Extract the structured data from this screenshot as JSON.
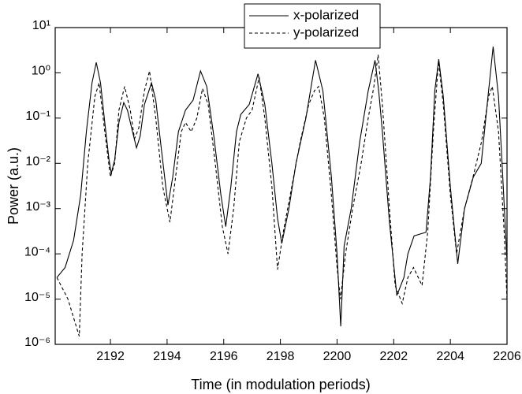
{
  "chart_data": {
    "type": "line",
    "xlabel": "Time (in modulation periods)",
    "ylabel": "Power (a.u.)",
    "xlim": [
      2190.05,
      2206
    ],
    "xticks": [
      2192,
      2194,
      2196,
      2198,
      2200,
      2202,
      2204,
      2206
    ],
    "ylim": [
      1e-06,
      10
    ],
    "yscale": "log",
    "yticks": [
      {
        "value": 1e-06,
        "label": "10⁻⁶"
      },
      {
        "value": 1e-05,
        "label": "10⁻⁵"
      },
      {
        "value": 0.0001,
        "label": "10⁻⁴"
      },
      {
        "value": 0.001,
        "label": "10⁻³"
      },
      {
        "value": 0.01,
        "label": "10⁻²"
      },
      {
        "value": 0.1,
        "label": "10⁻¹"
      },
      {
        "value": 1,
        "label": "10⁰"
      },
      {
        "value": 10,
        "label": "10¹"
      }
    ],
    "legend": "upper center",
    "series": [
      {
        "name": "x-polarized",
        "color": "#000000",
        "linestyle": "solid",
        "x": [
          2190.11,
          2190.4,
          2190.7,
          2190.95,
          2191.15,
          2191.35,
          2191.5,
          2191.65,
          2191.8,
          2191.95,
          2192.03,
          2192.15,
          2192.3,
          2192.47,
          2192.6,
          2192.75,
          2192.92,
          2193.05,
          2193.2,
          2193.45,
          2193.6,
          2193.8,
          2194.03,
          2194.2,
          2194.4,
          2194.65,
          2194.92,
          2195.18,
          2195.4,
          2195.65,
          2195.9,
          2196.07,
          2196.25,
          2196.45,
          2196.6,
          2196.9,
          2197.21,
          2197.45,
          2197.7,
          2197.9,
          2198.05,
          2198.3,
          2198.55,
          2198.9,
          2199.24,
          2199.5,
          2199.8,
          2200.0,
          2200.13,
          2200.25,
          2200.5,
          2200.8,
          2201.1,
          2201.34,
          2201.47,
          2201.6,
          2201.85,
          2202.11,
          2202.36,
          2202.5,
          2202.72,
          2203.14,
          2203.3,
          2203.45,
          2203.59,
          2203.75,
          2204.0,
          2204.26,
          2204.5,
          2204.81,
          2205.09,
          2205.3,
          2205.51,
          2205.7,
          2205.85,
          2206.0
        ],
        "values": [
          3e-05,
          5e-05,
          0.0002,
          0.002,
          0.05,
          0.6,
          1.7,
          0.6,
          0.08,
          0.012,
          0.006,
          0.012,
          0.08,
          0.22,
          0.15,
          0.06,
          0.022,
          0.04,
          0.2,
          0.6,
          0.25,
          0.02,
          0.0012,
          0.005,
          0.05,
          0.15,
          0.25,
          1.1,
          0.5,
          0.04,
          0.002,
          0.0004,
          0.003,
          0.05,
          0.12,
          0.2,
          0.95,
          0.2,
          0.01,
          0.0006,
          0.00017,
          0.001,
          0.01,
          0.1,
          1.9,
          0.4,
          0.005,
          0.0001,
          2.5e-06,
          0.00015,
          0.001,
          0.03,
          0.4,
          1.9,
          0.4,
          0.05,
          0.0005,
          1.2e-05,
          3e-05,
          0.0001,
          0.00025,
          0.0003,
          0.005,
          0.4,
          2.0,
          0.3,
          0.003,
          6e-05,
          0.001,
          0.005,
          0.01,
          0.2,
          3.8,
          0.3,
          0.005,
          7e-05
        ]
      },
      {
        "name": "y-polarized",
        "color": "#000000",
        "linestyle": "dashed",
        "x": [
          2190.11,
          2190.5,
          2190.9,
          2191.0,
          2191.2,
          2191.45,
          2191.6,
          2191.8,
          2192.0,
          2192.15,
          2192.3,
          2192.5,
          2192.7,
          2192.85,
          2193.0,
          2193.2,
          2193.38,
          2193.6,
          2193.85,
          2194.1,
          2194.3,
          2194.5,
          2194.65,
          2194.85,
          2195.05,
          2195.25,
          2195.45,
          2195.7,
          2195.95,
          2196.15,
          2196.35,
          2196.55,
          2196.8,
          2197.0,
          2197.25,
          2197.45,
          2197.7,
          2197.9,
          2198.1,
          2198.4,
          2198.7,
          2199.0,
          2199.2,
          2199.35,
          2199.55,
          2199.8,
          2200.0,
          2200.12,
          2200.3,
          2200.55,
          2200.85,
          2201.1,
          2201.3,
          2201.45,
          2201.6,
          2201.85,
          2202.05,
          2202.3,
          2202.5,
          2202.7,
          2203.0,
          2203.2,
          2203.4,
          2203.58,
          2203.75,
          2204.0,
          2204.22,
          2204.5,
          2204.8,
          2205.1,
          2205.35,
          2205.48,
          2205.7,
          2205.9,
          2206.0
        ],
        "values": [
          3e-05,
          1e-05,
          1.5e-06,
          0.0001,
          0.01,
          0.3,
          0.6,
          0.05,
          0.005,
          0.01,
          0.15,
          0.5,
          0.15,
          0.035,
          0.06,
          0.4,
          1.1,
          0.1,
          0.003,
          0.0005,
          0.005,
          0.05,
          0.08,
          0.05,
          0.1,
          0.45,
          0.2,
          0.01,
          0.0004,
          0.0001,
          0.001,
          0.03,
          0.1,
          0.15,
          0.8,
          0.1,
          0.003,
          4.5e-05,
          0.0003,
          0.003,
          0.03,
          0.2,
          0.4,
          0.5,
          0.1,
          0.002,
          5e-05,
          1e-05,
          0.0001,
          0.001,
          0.01,
          0.1,
          0.5,
          2.5,
          0.2,
          0.001,
          2e-05,
          8e-06,
          3e-05,
          5e-05,
          2e-05,
          0.0003,
          0.05,
          1.8,
          0.2,
          0.002,
          0.0001,
          0.001,
          0.005,
          0.03,
          0.3,
          0.5,
          0.05,
          0.0003,
          1e-05
        ]
      }
    ]
  }
}
